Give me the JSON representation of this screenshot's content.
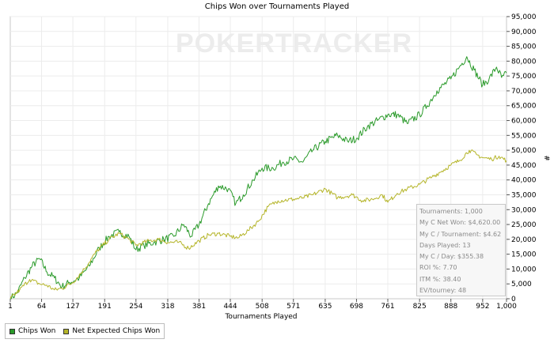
{
  "chart_data": {
    "type": "line",
    "title": "Chips Won over Tournaments Played",
    "xlabel": "Tournaments Played",
    "ylabel": "#",
    "xlim": [
      1,
      1000
    ],
    "ylim": [
      0,
      95000
    ],
    "grid": true,
    "legend_position": "bottom-left",
    "xtick_labels": [
      "1",
      "64",
      "127",
      "191",
      "254",
      "318",
      "381",
      "444",
      "508",
      "571",
      "635",
      "698",
      "761",
      "825",
      "888",
      "952",
      "1,000"
    ],
    "ytick_labels": [
      "0",
      "5,000",
      "10,000",
      "15,000",
      "20,000",
      "25,000",
      "30,000",
      "35,000",
      "40,000",
      "45,000",
      "50,000",
      "55,000",
      "60,000",
      "65,000",
      "70,000",
      "75,000",
      "80,000",
      "85,000",
      "90,000",
      "95,000"
    ],
    "series": [
      {
        "name": "Chips Won",
        "color": "#2a9a2a",
        "points": [
          [
            1,
            0
          ],
          [
            15,
            2000
          ],
          [
            30,
            7000
          ],
          [
            45,
            11000
          ],
          [
            60,
            13500
          ],
          [
            75,
            9000
          ],
          [
            90,
            7000
          ],
          [
            105,
            4000
          ],
          [
            120,
            5500
          ],
          [
            140,
            7000
          ],
          [
            160,
            11000
          ],
          [
            180,
            17000
          ],
          [
            200,
            21000
          ],
          [
            220,
            22500
          ],
          [
            240,
            21000
          ],
          [
            254,
            16500
          ],
          [
            270,
            18000
          ],
          [
            290,
            19000
          ],
          [
            310,
            20000
          ],
          [
            330,
            21000
          ],
          [
            350,
            25000
          ],
          [
            365,
            21000
          ],
          [
            381,
            25000
          ],
          [
            400,
            32000
          ],
          [
            420,
            38000
          ],
          [
            440,
            37000
          ],
          [
            455,
            32000
          ],
          [
            470,
            35000
          ],
          [
            490,
            40000
          ],
          [
            508,
            44000
          ],
          [
            530,
            44000
          ],
          [
            550,
            46000
          ],
          [
            571,
            47000
          ],
          [
            590,
            46000
          ],
          [
            610,
            50000
          ],
          [
            635,
            53000
          ],
          [
            660,
            55000
          ],
          [
            680,
            53000
          ],
          [
            698,
            54000
          ],
          [
            720,
            58000
          ],
          [
            740,
            60000
          ],
          [
            761,
            62000
          ],
          [
            780,
            62000
          ],
          [
            800,
            59000
          ],
          [
            825,
            62000
          ],
          [
            840,
            65000
          ],
          [
            860,
            70000
          ],
          [
            888,
            74000
          ],
          [
            905,
            78000
          ],
          [
            920,
            81500
          ],
          [
            935,
            77000
          ],
          [
            952,
            72000
          ],
          [
            965,
            74000
          ],
          [
            980,
            78000
          ],
          [
            990,
            74500
          ],
          [
            1000,
            76000
          ]
        ]
      },
      {
        "name": "Net Expected Chips Won",
        "color": "#b5b52a",
        "points": [
          [
            1,
            0
          ],
          [
            20,
            3000
          ],
          [
            40,
            6500
          ],
          [
            60,
            5000
          ],
          [
            75,
            4500
          ],
          [
            90,
            3000
          ],
          [
            105,
            3500
          ],
          [
            127,
            5500
          ],
          [
            150,
            10000
          ],
          [
            175,
            16000
          ],
          [
            200,
            20000
          ],
          [
            220,
            22000
          ],
          [
            240,
            20000
          ],
          [
            254,
            18000
          ],
          [
            280,
            19500
          ],
          [
            300,
            20000
          ],
          [
            318,
            19000
          ],
          [
            340,
            19000
          ],
          [
            360,
            17000
          ],
          [
            381,
            19500
          ],
          [
            400,
            21500
          ],
          [
            420,
            22000
          ],
          [
            444,
            21000
          ],
          [
            460,
            20500
          ],
          [
            480,
            23000
          ],
          [
            500,
            26000
          ],
          [
            520,
            31000
          ],
          [
            540,
            33000
          ],
          [
            571,
            33500
          ],
          [
            590,
            34000
          ],
          [
            610,
            35000
          ],
          [
            635,
            37000
          ],
          [
            660,
            34000
          ],
          [
            690,
            35000
          ],
          [
            710,
            33000
          ],
          [
            730,
            33500
          ],
          [
            750,
            35000
          ],
          [
            761,
            32500
          ],
          [
            780,
            35500
          ],
          [
            800,
            37000
          ],
          [
            825,
            38500
          ],
          [
            850,
            41000
          ],
          [
            870,
            43000
          ],
          [
            888,
            45000
          ],
          [
            905,
            46500
          ],
          [
            925,
            50000
          ],
          [
            940,
            48500
          ],
          [
            952,
            47500
          ],
          [
            970,
            47000
          ],
          [
            985,
            48000
          ],
          [
            1000,
            46500
          ]
        ]
      }
    ]
  },
  "stats_box": {
    "lines": [
      "Tournaments: 1,000",
      "My C Net Won: $4,620.00",
      "My C / Tournament: $4.62",
      "Days Played: 13",
      "My C / Day: $355.38",
      "ROI %: 7.70",
      "ITM %: 38.40",
      "EV/tourney: 48"
    ]
  },
  "legend": {
    "items": [
      {
        "label": "Chips Won",
        "color": "#2a9a2a"
      },
      {
        "label": "Net Expected Chips Won",
        "color": "#b5b52a"
      }
    ]
  },
  "watermark": {
    "text": "POKERTRACKER"
  }
}
